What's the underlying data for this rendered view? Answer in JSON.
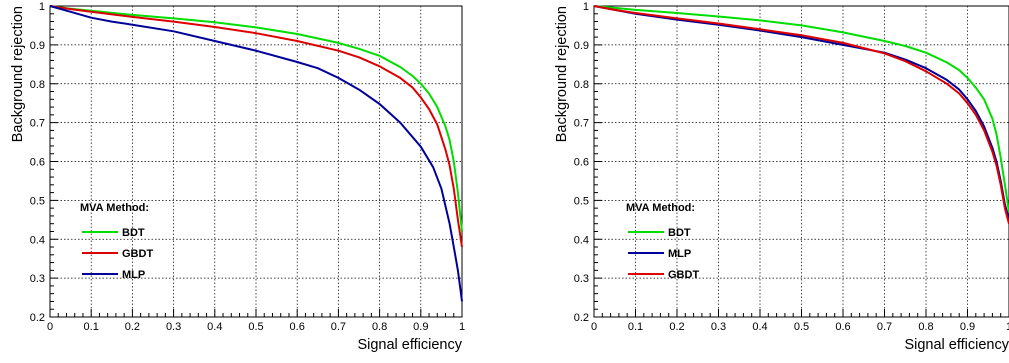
{
  "chart_data": [
    {
      "type": "line",
      "title": "",
      "xlabel": "Signal efficiency",
      "ylabel": "Background rejection",
      "xlim": [
        0,
        1
      ],
      "ylim": [
        0.2,
        1
      ],
      "grid": true,
      "x_ticks": [
        "0",
        "0.1",
        "0.2",
        "0.3",
        "0.4",
        "0.5",
        "0.6",
        "0.7",
        "0.8",
        "0.9",
        "1"
      ],
      "y_ticks": [
        "0.2",
        "0.3",
        "0.4",
        "0.5",
        "0.6",
        "0.7",
        "0.8",
        "0.9",
        "1"
      ],
      "legend": {
        "title": "MVA Method:",
        "placement": "bottom-left",
        "entries": [
          "BDT",
          "GBDT",
          "MLP"
        ]
      },
      "series": [
        {
          "name": "BDT",
          "color": "#00dd00",
          "x": [
            0,
            0.05,
            0.1,
            0.2,
            0.3,
            0.4,
            0.5,
            0.6,
            0.7,
            0.75,
            0.8,
            0.85,
            0.88,
            0.9,
            0.92,
            0.94,
            0.96,
            0.97,
            0.98,
            0.99,
            1.0
          ],
          "y": [
            1.0,
            0.993,
            0.988,
            0.977,
            0.968,
            0.958,
            0.945,
            0.928,
            0.905,
            0.89,
            0.872,
            0.843,
            0.82,
            0.8,
            0.775,
            0.74,
            0.69,
            0.655,
            0.6,
            0.52,
            0.42
          ]
        },
        {
          "name": "GBDT",
          "color": "#dd0000",
          "x": [
            0,
            0.05,
            0.1,
            0.2,
            0.3,
            0.4,
            0.5,
            0.6,
            0.7,
            0.75,
            0.8,
            0.85,
            0.88,
            0.9,
            0.92,
            0.94,
            0.96,
            0.97,
            0.98,
            0.99,
            1.0
          ],
          "y": [
            1.0,
            0.992,
            0.985,
            0.972,
            0.96,
            0.946,
            0.93,
            0.91,
            0.885,
            0.868,
            0.845,
            0.815,
            0.79,
            0.765,
            0.735,
            0.695,
            0.63,
            0.59,
            0.53,
            0.45,
            0.38
          ]
        },
        {
          "name": "MLP",
          "color": "#000099",
          "x": [
            0,
            0.05,
            0.1,
            0.15,
            0.2,
            0.3,
            0.4,
            0.5,
            0.6,
            0.65,
            0.7,
            0.75,
            0.8,
            0.85,
            0.9,
            0.93,
            0.95,
            0.97,
            0.98,
            0.99,
            1.0
          ],
          "y": [
            1.0,
            0.985,
            0.97,
            0.96,
            0.952,
            0.935,
            0.91,
            0.885,
            0.856,
            0.84,
            0.815,
            0.785,
            0.748,
            0.7,
            0.638,
            0.585,
            0.53,
            0.44,
            0.38,
            0.32,
            0.24
          ]
        }
      ]
    },
    {
      "type": "line",
      "title": "",
      "xlabel": "Signal efficiency",
      "ylabel": "Background rejection",
      "xlim": [
        0,
        1
      ],
      "ylim": [
        0.2,
        1
      ],
      "grid": true,
      "x_ticks": [
        "0",
        "0.1",
        "0.2",
        "0.3",
        "0.4",
        "0.5",
        "0.6",
        "0.7",
        "0.8",
        "0.9",
        "1"
      ],
      "y_ticks": [
        "0.2",
        "0.3",
        "0.4",
        "0.5",
        "0.6",
        "0.7",
        "0.8",
        "0.9",
        "1"
      ],
      "legend": {
        "title": "MVA Method:",
        "placement": "bottom-left",
        "entries": [
          "BDT",
          "MLP",
          "GBDT"
        ]
      },
      "series": [
        {
          "name": "BDT",
          "color": "#00dd00",
          "x": [
            0,
            0.05,
            0.1,
            0.2,
            0.3,
            0.4,
            0.5,
            0.6,
            0.7,
            0.75,
            0.8,
            0.85,
            0.88,
            0.9,
            0.92,
            0.94,
            0.96,
            0.97,
            0.98,
            0.99,
            1.0
          ],
          "y": [
            1.0,
            0.995,
            0.99,
            0.982,
            0.973,
            0.963,
            0.95,
            0.932,
            0.91,
            0.897,
            0.88,
            0.855,
            0.835,
            0.815,
            0.79,
            0.76,
            0.71,
            0.67,
            0.61,
            0.54,
            0.47
          ]
        },
        {
          "name": "MLP",
          "color": "#000099",
          "x": [
            0,
            0.05,
            0.1,
            0.2,
            0.3,
            0.4,
            0.5,
            0.6,
            0.7,
            0.75,
            0.8,
            0.85,
            0.88,
            0.9,
            0.92,
            0.94,
            0.96,
            0.97,
            0.98,
            0.99,
            1.0
          ],
          "y": [
            1.0,
            0.99,
            0.98,
            0.965,
            0.952,
            0.937,
            0.92,
            0.9,
            0.88,
            0.862,
            0.84,
            0.81,
            0.785,
            0.76,
            0.73,
            0.69,
            0.635,
            0.6,
            0.55,
            0.49,
            0.45
          ]
        },
        {
          "name": "GBDT",
          "color": "#dd0000",
          "x": [
            0,
            0.05,
            0.1,
            0.2,
            0.3,
            0.4,
            0.5,
            0.6,
            0.7,
            0.75,
            0.8,
            0.85,
            0.88,
            0.9,
            0.92,
            0.94,
            0.96,
            0.97,
            0.98,
            0.99,
            1.0
          ],
          "y": [
            1.0,
            0.99,
            0.982,
            0.968,
            0.955,
            0.94,
            0.925,
            0.905,
            0.878,
            0.858,
            0.832,
            0.8,
            0.775,
            0.75,
            0.72,
            0.68,
            0.625,
            0.59,
            0.54,
            0.48,
            0.44
          ]
        }
      ]
    }
  ]
}
